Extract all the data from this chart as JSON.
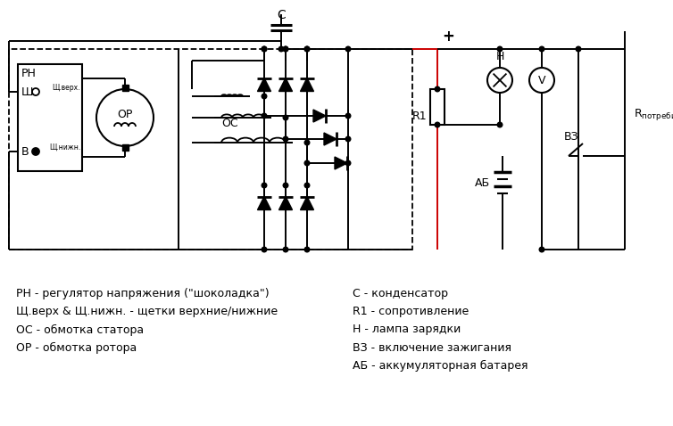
{
  "bg_color": "#ffffff",
  "line_color": "#000000",
  "red_color": "#cc0000",
  "legend_left": [
    "РН - регулятор напряжения (\"шоколадка\")",
    "Щ.верх & Щ.нижн. - щетки верхние/нижние",
    "ОС - обмотка статора",
    "ОР - обмотка ротора"
  ],
  "legend_right": [
    "С - конденсатор",
    "R1 - сопротивление",
    "Н - лампа зарядки",
    "ВЗ - включение зажигания",
    "АБ - аккумуляторная батарея"
  ]
}
